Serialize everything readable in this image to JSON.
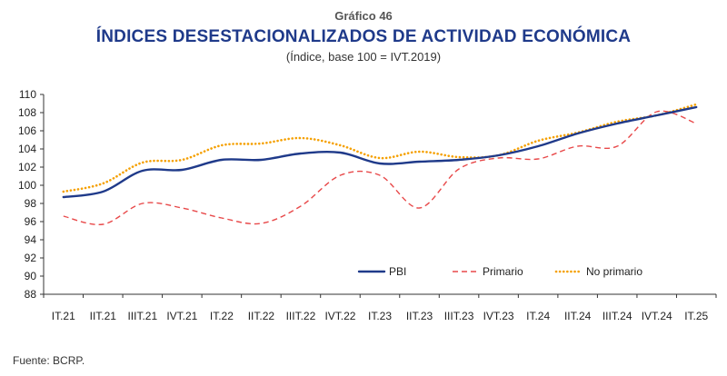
{
  "header": {
    "overline": "Gráfico 46",
    "title": "ÍNDICES DESESTACIONALIZADOS DE ACTIVIDAD ECONÓMICA",
    "subtitle": "(Índice, base 100 = IVT.2019)"
  },
  "footer": {
    "source": "Fuente: BCRP."
  },
  "chart_data": {
    "type": "line",
    "categories": [
      "IT.21",
      "IIT.21",
      "IIIT.21",
      "IVT.21",
      "IT.22",
      "IIT.22",
      "IIIT.22",
      "IVT.22",
      "IT.23",
      "IIT.23",
      "IIIT.23",
      "IVT.23",
      "IT.24",
      "IIT.24",
      "IIIT.24",
      "IVT.24",
      "IT.25"
    ],
    "ylim": [
      88,
      110
    ],
    "yticks": [
      88,
      90,
      92,
      94,
      96,
      98,
      100,
      102,
      104,
      106,
      108,
      110
    ],
    "grid": false,
    "legend_position": "bottom-right",
    "series": [
      {
        "name": "PBI",
        "color": "#1f3a8a",
        "style": "solid",
        "values": [
          98.7,
          99.3,
          101.6,
          101.7,
          102.8,
          102.8,
          103.5,
          103.6,
          102.4,
          102.6,
          102.8,
          103.3,
          104.3,
          105.7,
          106.8,
          107.7,
          108.6
        ]
      },
      {
        "name": "Primario",
        "color": "#e8494a",
        "style": "dashed",
        "values": [
          96.6,
          95.7,
          98.0,
          97.5,
          96.4,
          95.8,
          97.7,
          101.1,
          101.1,
          97.5,
          101.8,
          103.0,
          102.9,
          104.3,
          104.3,
          108.1,
          106.8
        ]
      },
      {
        "name": "No primario",
        "color": "#f5a000",
        "style": "dotted",
        "values": [
          99.3,
          100.2,
          102.5,
          102.8,
          104.4,
          104.6,
          105.2,
          104.4,
          103.0,
          103.7,
          103.1,
          103.3,
          104.9,
          105.8,
          107.0,
          107.7,
          108.9
        ]
      }
    ]
  }
}
